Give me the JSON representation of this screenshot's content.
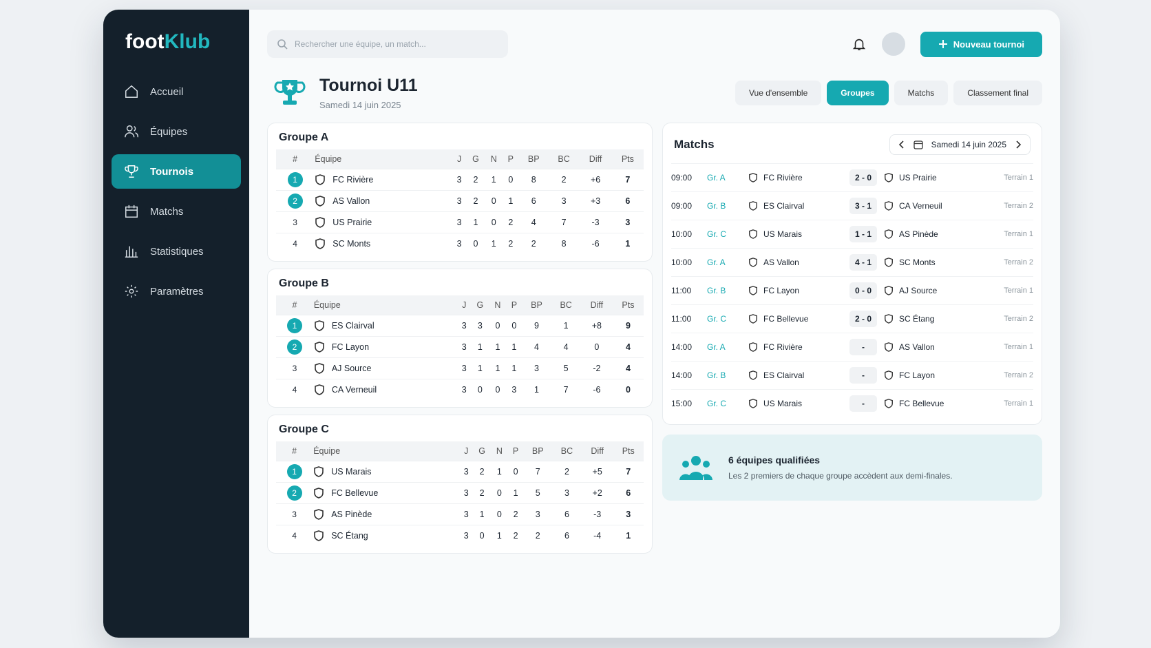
{
  "brand": {
    "part1": "foot",
    "part2": "Klub"
  },
  "nav": [
    "Accueil",
    "Équipes",
    "Tournois",
    "Matchs",
    "Statistiques",
    "Paramètres"
  ],
  "active_nav": "Tournois",
  "search_placeholder": "Rechercher une équipe, un match...",
  "new_button": "Nouveau tournoi",
  "header": {
    "title": "Tournoi U11",
    "date": "Samedi 14 juin 2025"
  },
  "tabs": [
    "Vue d'ensemble",
    "Groupes",
    "Matchs",
    "Classement final"
  ],
  "active_tab": "Groupes",
  "columns": [
    "#",
    "Équipe",
    "J",
    "G",
    "N",
    "P",
    "BP",
    "BC",
    "Diff",
    "Pts"
  ],
  "groups": [
    {
      "name": "Groupe A",
      "rows": [
        [
          "1",
          "FC Rivière",
          "3",
          "2",
          "1",
          "0",
          "8",
          "2",
          "+6",
          "7"
        ],
        [
          "2",
          "AS Vallon",
          "3",
          "2",
          "0",
          "1",
          "6",
          "3",
          "+3",
          "6"
        ],
        [
          "3",
          "US Prairie",
          "3",
          "1",
          "0",
          "2",
          "4",
          "7",
          "-3",
          "3"
        ],
        [
          "4",
          "SC Monts",
          "3",
          "0",
          "1",
          "2",
          "2",
          "8",
          "-6",
          "1"
        ]
      ]
    },
    {
      "name": "Groupe B",
      "rows": [
        [
          "1",
          "ES Clairval",
          "3",
          "3",
          "0",
          "0",
          "9",
          "1",
          "+8",
          "9"
        ],
        [
          "2",
          "FC Layon",
          "3",
          "1",
          "1",
          "1",
          "4",
          "4",
          "0",
          "4"
        ],
        [
          "3",
          "AJ Source",
          "3",
          "1",
          "1",
          "1",
          "3",
          "5",
          "-2",
          "4"
        ],
        [
          "4",
          "CA Verneuil",
          "3",
          "0",
          "0",
          "3",
          "1",
          "7",
          "-6",
          "0"
        ]
      ]
    },
    {
      "name": "Groupe C",
      "rows": [
        [
          "1",
          "US Marais",
          "3",
          "2",
          "1",
          "0",
          "7",
          "2",
          "+5",
          "7"
        ],
        [
          "2",
          "FC Bellevue",
          "3",
          "2",
          "0",
          "1",
          "5",
          "3",
          "+2",
          "6"
        ],
        [
          "3",
          "AS Pinède",
          "3",
          "1",
          "0",
          "2",
          "3",
          "6",
          "-3",
          "3"
        ],
        [
          "4",
          "SC Étang",
          "3",
          "0",
          "1",
          "2",
          "2",
          "6",
          "-4",
          "1"
        ]
      ]
    }
  ],
  "matches": {
    "title": "Matchs",
    "date": "Samedi 14 juin 2025",
    "rows": [
      [
        "09:00",
        "Gr. A",
        "FC Rivière",
        "2 - 0",
        "US Prairie",
        "Terrain 1"
      ],
      [
        "09:00",
        "Gr. B",
        "ES Clairval",
        "3 - 1",
        "CA Verneuil",
        "Terrain 2"
      ],
      [
        "10:00",
        "Gr. C",
        "US Marais",
        "1 - 1",
        "AS Pinède",
        "Terrain 1"
      ],
      [
        "10:00",
        "Gr. A",
        "AS Vallon",
        "4 - 1",
        "SC Monts",
        "Terrain 2"
      ],
      [
        "11:00",
        "Gr. B",
        "FC Layon",
        "0 - 0",
        "AJ Source",
        "Terrain 1"
      ],
      [
        "11:00",
        "Gr. C",
        "FC Bellevue",
        "2 - 0",
        "SC Étang",
        "Terrain 2"
      ],
      [
        "14:00",
        "Gr. A",
        "FC Rivière",
        "-",
        "AS Vallon",
        "Terrain 1"
      ],
      [
        "14:00",
        "Gr. B",
        "ES Clairval",
        "-",
        "FC Layon",
        "Terrain 2"
      ],
      [
        "15:00",
        "Gr. C",
        "US Marais",
        "-",
        "FC Bellevue",
        "Terrain 1"
      ]
    ]
  },
  "qualified": {
    "title": "6 équipes qualifiées",
    "text": "Les 2 premiers de chaque groupe accèdent aux demi-finales."
  }
}
